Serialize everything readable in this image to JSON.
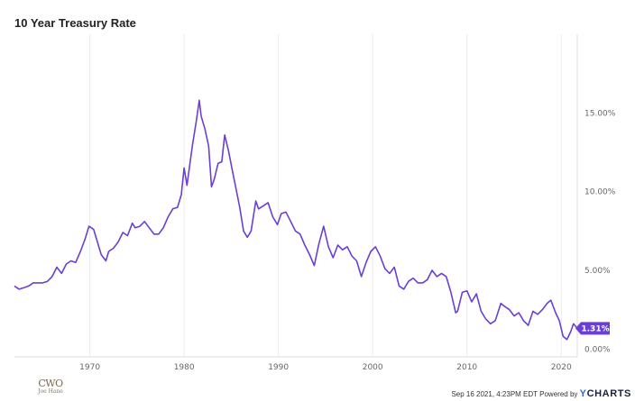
{
  "chart_data": {
    "type": "line",
    "title": "10 Year Treasury Rate",
    "xlabel": "",
    "ylabel": "",
    "x_ticks": [
      "1970",
      "1980",
      "1990",
      "2000",
      "2010",
      "2020"
    ],
    "y_ticks": [
      "0.00%",
      "5.00%",
      "10.00%",
      "15.00%"
    ],
    "xlim": [
      1962,
      2021.7
    ],
    "ylim": [
      -0.5,
      20
    ],
    "grid": "vertical",
    "line_color": "#6a3fd4",
    "series": [
      {
        "name": "",
        "x": [
          1962.0,
          1962.5,
          1963.0,
          1963.5,
          1964.0,
          1964.5,
          1965.0,
          1965.5,
          1966.0,
          1966.5,
          1967.0,
          1967.5,
          1968.0,
          1968.5,
          1969.0,
          1969.5,
          1969.9,
          1970.4,
          1970.8,
          1971.2,
          1971.7,
          1972.0,
          1972.5,
          1973.0,
          1973.5,
          1974.0,
          1974.5,
          1974.8,
          1975.3,
          1975.8,
          1976.3,
          1976.8,
          1977.3,
          1977.8,
          1978.3,
          1978.8,
          1979.3,
          1979.7,
          1980.0,
          1980.3,
          1980.6,
          1980.9,
          1981.3,
          1981.6,
          1981.8,
          1982.2,
          1982.6,
          1982.9,
          1983.2,
          1983.6,
          1984.0,
          1984.3,
          1984.7,
          1985.1,
          1985.5,
          1985.9,
          1986.3,
          1986.7,
          1987.1,
          1987.6,
          1987.9,
          1988.4,
          1988.9,
          1989.4,
          1989.9,
          1990.3,
          1990.8,
          1991.3,
          1991.8,
          1992.3,
          1992.8,
          1993.3,
          1993.8,
          1994.3,
          1994.8,
          1995.3,
          1995.8,
          1996.3,
          1996.8,
          1997.3,
          1997.8,
          1998.3,
          1998.8,
          1999.3,
          1999.8,
          2000.3,
          2000.8,
          2001.3,
          2001.8,
          2002.3,
          2002.8,
          2003.3,
          2003.8,
          2004.3,
          2004.8,
          2005.3,
          2005.8,
          2006.3,
          2006.8,
          2007.3,
          2007.8,
          2008.3,
          2008.8,
          2009.0,
          2009.5,
          2010.0,
          2010.5,
          2011.0,
          2011.5,
          2012.0,
          2012.5,
          2013.0,
          2013.6,
          2014.0,
          2014.5,
          2015.0,
          2015.5,
          2016.0,
          2016.5,
          2017.0,
          2017.5,
          2018.0,
          2018.5,
          2018.9,
          2019.4,
          2019.8,
          2020.2,
          2020.6,
          2021.0,
          2021.3,
          2021.7
        ],
        "values": [
          4.0,
          3.8,
          3.9,
          4.0,
          4.2,
          4.2,
          4.2,
          4.3,
          4.6,
          5.2,
          4.8,
          5.4,
          5.6,
          5.5,
          6.2,
          7.0,
          7.8,
          7.6,
          6.8,
          6.0,
          5.6,
          6.2,
          6.4,
          6.8,
          7.4,
          7.2,
          8.0,
          7.7,
          7.8,
          8.1,
          7.7,
          7.3,
          7.3,
          7.7,
          8.4,
          8.9,
          9.0,
          9.8,
          11.5,
          10.4,
          11.7,
          13.0,
          14.5,
          15.8,
          14.8,
          14.0,
          12.9,
          10.3,
          10.8,
          11.8,
          11.9,
          13.6,
          12.6,
          11.4,
          10.2,
          9.0,
          7.5,
          7.1,
          7.5,
          9.4,
          8.9,
          9.1,
          9.3,
          8.4,
          7.9,
          8.6,
          8.7,
          8.1,
          7.5,
          7.3,
          6.6,
          6.0,
          5.3,
          6.7,
          7.8,
          6.5,
          5.8,
          6.6,
          6.3,
          6.5,
          5.9,
          5.6,
          4.6,
          5.5,
          6.2,
          6.5,
          5.9,
          5.1,
          4.8,
          5.2,
          4.0,
          3.8,
          4.3,
          4.5,
          4.2,
          4.2,
          4.4,
          5.0,
          4.6,
          4.8,
          4.6,
          3.6,
          2.3,
          2.4,
          3.6,
          3.7,
          3.0,
          3.5,
          2.4,
          1.9,
          1.6,
          1.8,
          2.9,
          2.7,
          2.5,
          2.1,
          2.3,
          1.8,
          1.5,
          2.4,
          2.2,
          2.5,
          2.9,
          3.1,
          2.3,
          1.8,
          0.8,
          0.6,
          1.1,
          1.6,
          1.31
        ]
      }
    ],
    "last_value_label": "1.31%"
  },
  "footer": {
    "timestamp": "Sep 16 2021, 4:23PM EDT",
    "powered_by": "Powered by",
    "brand_y": "Y",
    "brand_rest": "CHARTS"
  },
  "logo": {
    "mark": "CWO",
    "sub": "Joe Hane"
  }
}
